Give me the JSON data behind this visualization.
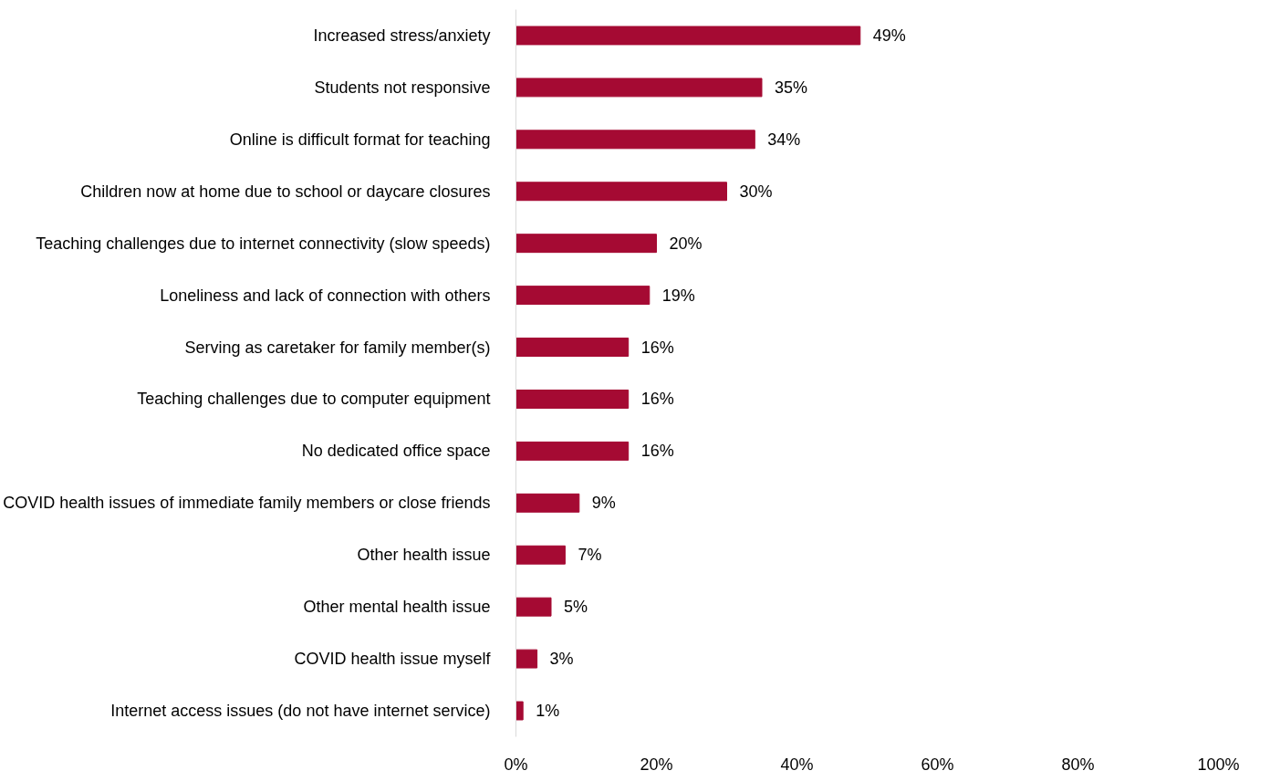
{
  "chart_data": {
    "type": "bar",
    "orientation": "horizontal",
    "categories": [
      "Increased stress/anxiety",
      "Students not responsive",
      "Online is difficult format for teaching",
      "Children now at home due to school or daycare closures",
      "Teaching challenges due to internet connectivity (slow speeds)",
      "Loneliness and lack of connection with others",
      "Serving as caretaker for family member(s)",
      "Teaching challenges due to computer equipment",
      "No dedicated office space",
      "COVID health issues of immediate family members or close friends",
      "Other health issue",
      "Other mental health issue",
      "COVID health issue myself",
      "Internet access issues (do not have internet service)"
    ],
    "values": [
      49,
      35,
      34,
      30,
      20,
      19,
      16,
      16,
      16,
      9,
      7,
      5,
      3,
      1
    ],
    "value_labels": [
      "49%",
      "35%",
      "34%",
      "30%",
      "20%",
      "19%",
      "16%",
      "16%",
      "16%",
      "9%",
      "7%",
      "5%",
      "3%",
      "1%"
    ],
    "color": "#a50a33",
    "xlim": [
      0,
      100
    ],
    "xticks": [
      {
        "value": 0,
        "label": "0%"
      },
      {
        "value": 20,
        "label": "20%"
      },
      {
        "value": 40,
        "label": "40%"
      },
      {
        "value": 60,
        "label": "60%"
      },
      {
        "value": 80,
        "label": "80%"
      },
      {
        "value": 100,
        "label": "100%"
      }
    ]
  }
}
